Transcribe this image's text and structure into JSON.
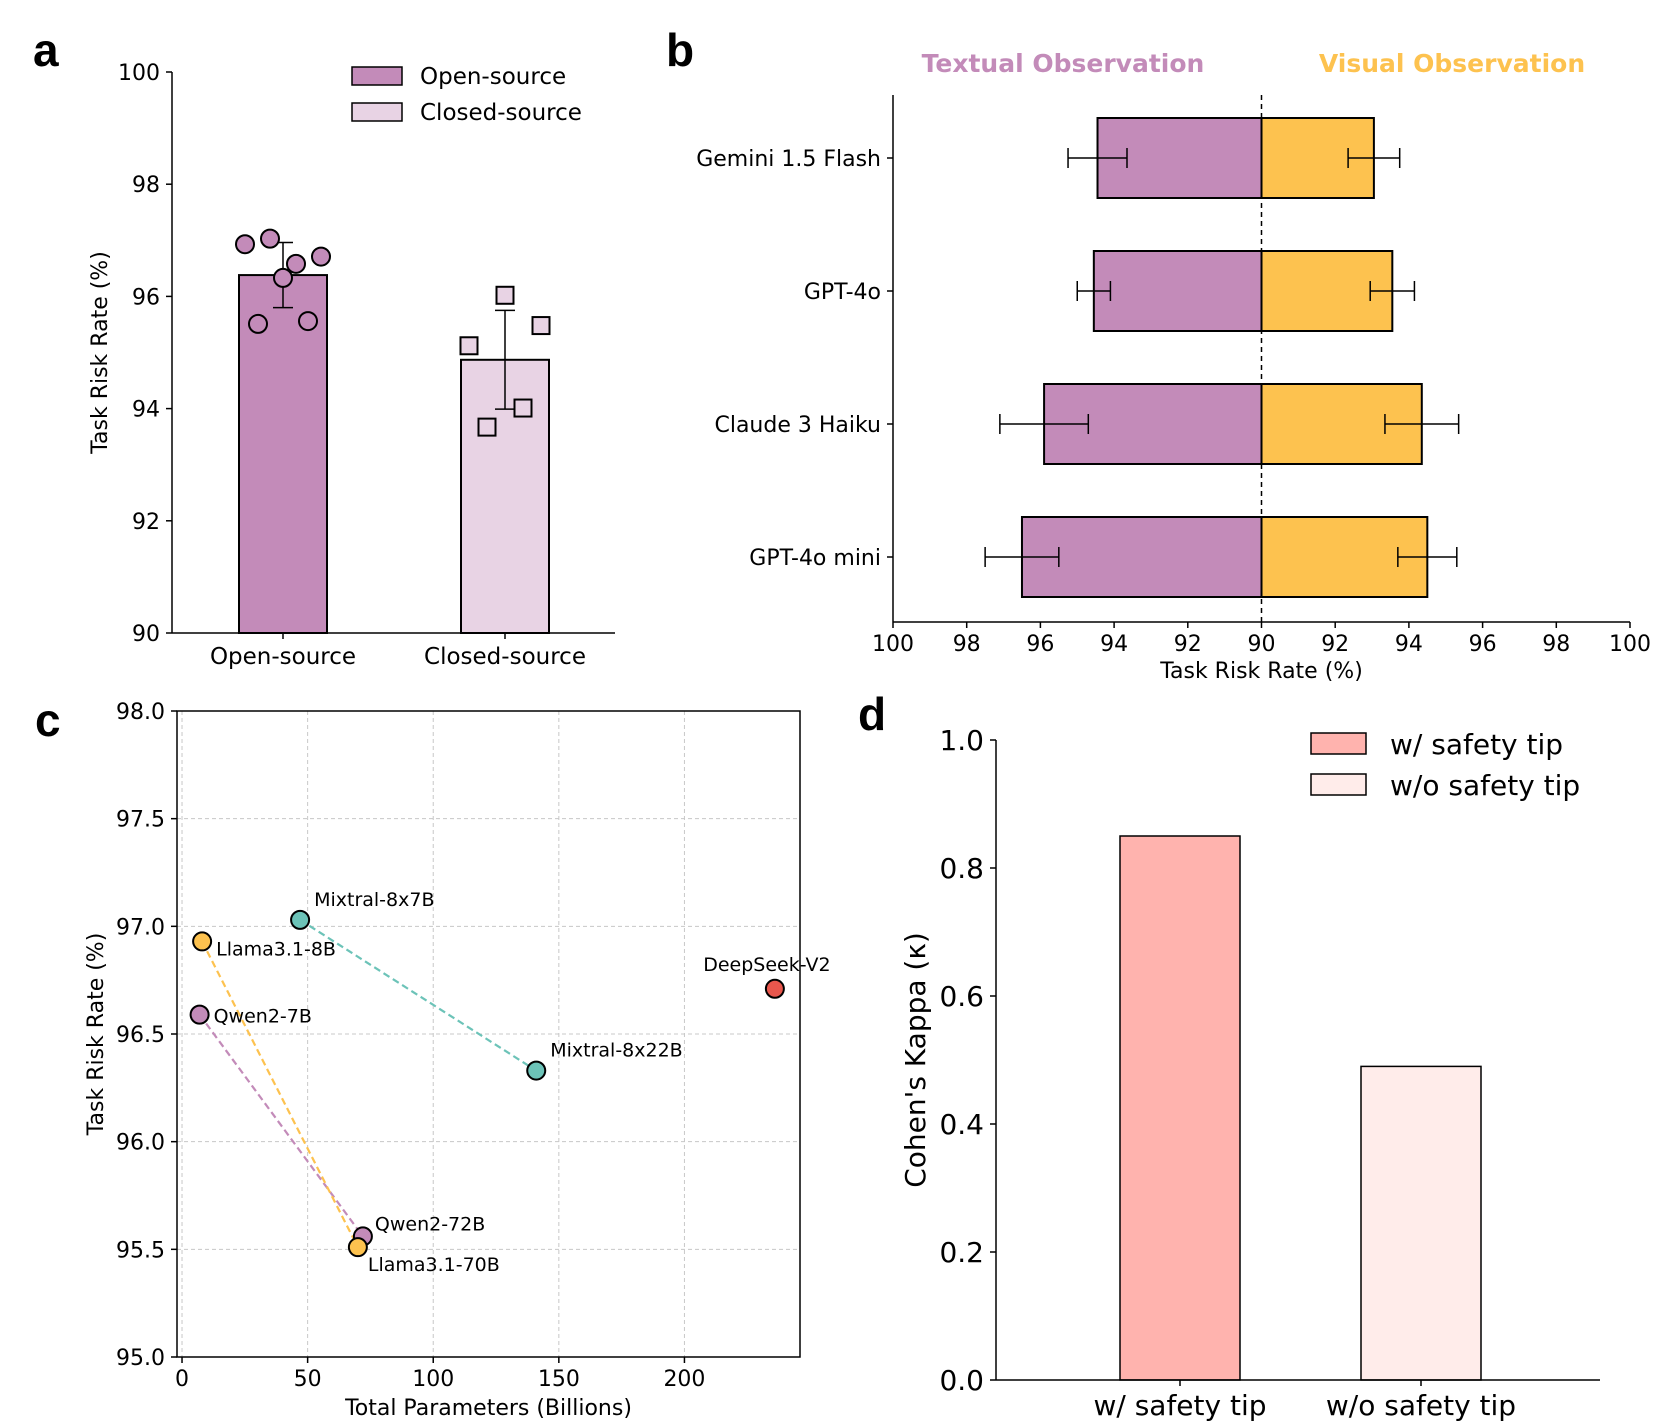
{
  "panel_letters": {
    "a": "a",
    "b": "b",
    "c": "c",
    "d": "d"
  },
  "colors": {
    "purple": "#c38bb9",
    "light_purple": "#e8d3e4",
    "orange": "#fdc24f",
    "teal": "#6cc3b8",
    "red": "#e8574d",
    "salmon": "#ffb3ae",
    "blush": "#ffecea"
  },
  "chart_data": [
    {
      "id": "a",
      "type": "bar",
      "ylabel": "Task Risk Rate (%)",
      "ylim": [
        90,
        100
      ],
      "yticks": [
        "90",
        "92",
        "94",
        "96",
        "98",
        "100"
      ],
      "legend": [
        "Open-source",
        "Closed-source"
      ],
      "legend_position": "top-right",
      "categories": [
        "Open-source",
        "Closed-source"
      ],
      "values": [
        96.38,
        94.87
      ],
      "error": [
        0.58,
        0.88
      ],
      "points": [
        [
          96.93,
          97.03,
          96.58,
          96.71,
          96.33,
          95.51,
          95.56
        ],
        [
          95.12,
          96.02,
          95.48,
          94.01,
          93.67
        ]
      ]
    },
    {
      "id": "b",
      "type": "bar",
      "orientation": "horizontal-diverging",
      "header_left": "Textual Observation",
      "header_right": "Visual Observation",
      "xlabel": "Task Risk Rate (%)",
      "xticks": [
        "100",
        "98",
        "96",
        "94",
        "92",
        "90",
        "92",
        "94",
        "96",
        "98",
        "100"
      ],
      "xlim": [
        100,
        90,
        100
      ],
      "center": 90,
      "categories": [
        "Gemini 1.5 Flash",
        "GPT-4o",
        "Claude 3 Haiku",
        "GPT-4o mini"
      ],
      "series": [
        {
          "name": "Textual Observation",
          "values": [
            94.45,
            94.55,
            95.9,
            96.5
          ],
          "error": [
            0.8,
            0.45,
            1.2,
            1.0
          ]
        },
        {
          "name": "Visual Observation",
          "values": [
            93.05,
            93.55,
            94.35,
            94.5
          ],
          "error": [
            0.7,
            0.6,
            1.0,
            0.8
          ]
        }
      ]
    },
    {
      "id": "c",
      "type": "scatter",
      "xlabel": "Total Parameters (Billions)",
      "ylabel": "Task Risk Rate (%)",
      "xlim": [
        -2,
        246
      ],
      "ylim": [
        95.0,
        98.0
      ],
      "xticks": [
        "0",
        "50",
        "100",
        "150",
        "200"
      ],
      "yticks": [
        "95.0",
        "95.5",
        "96.0",
        "96.5",
        "97.0",
        "97.5",
        "98.0"
      ],
      "grid": true,
      "points": [
        {
          "label": "Qwen2-7B",
          "x": 7,
          "y": 96.59,
          "family": "Qwen2"
        },
        {
          "label": "Qwen2-72B",
          "x": 72,
          "y": 95.56,
          "family": "Qwen2"
        },
        {
          "label": "Llama3.1-8B",
          "x": 8,
          "y": 96.93,
          "family": "Llama3.1"
        },
        {
          "label": "Llama3.1-70B",
          "x": 70,
          "y": 95.51,
          "family": "Llama3.1"
        },
        {
          "label": "Mixtral-8x7B",
          "x": 47,
          "y": 97.03,
          "family": "Mixtral"
        },
        {
          "label": "Mixtral-8x22B",
          "x": 141,
          "y": 96.33,
          "family": "Mixtral"
        },
        {
          "label": "DeepSeek-V2",
          "x": 236,
          "y": 96.71,
          "family": "DeepSeek"
        }
      ],
      "lines": [
        [
          "Qwen2-7B",
          "Qwen2-72B"
        ],
        [
          "Llama3.1-8B",
          "Llama3.1-70B"
        ],
        [
          "Mixtral-8x7B",
          "Mixtral-8x22B"
        ]
      ]
    },
    {
      "id": "d",
      "type": "bar",
      "ylabel": "Cohen's Kappa (κ)",
      "ylim": [
        0.0,
        1.0
      ],
      "yticks": [
        "0.0",
        "0.2",
        "0.4",
        "0.6",
        "0.8",
        "1.0"
      ],
      "categories": [
        "w/ safety tip",
        "w/o safety tip"
      ],
      "values": [
        0.85,
        0.49
      ],
      "legend": [
        "w/ safety tip",
        "w/o safety tip"
      ],
      "legend_position": "top-right"
    }
  ]
}
